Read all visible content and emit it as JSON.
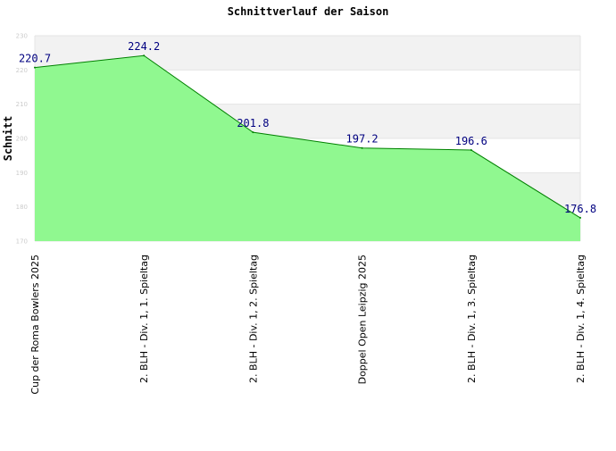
{
  "chart_data": {
    "type": "area",
    "title": "Schnittverlauf der Saison",
    "ylabel": "Schnitt",
    "xlabel": "",
    "categories": [
      "Cup der Roma Bowlers 2025",
      "2. BLH - Div. 1, 1. Spieltag",
      "2. BLH - Div. 1, 2. Spieltag",
      "Doppel Open Leipzig 2025",
      "2. BLH - Div. 1, 3. Spieltag",
      "2. BLH - Div. 1, 4. Spieltag"
    ],
    "values": [
      220.7,
      224.2,
      201.8,
      197.2,
      196.6,
      176.8
    ],
    "value_labels": [
      "220.7",
      "224.2",
      "201.8",
      "197.2",
      "196.6",
      "176.8"
    ],
    "ylim": [
      170,
      230
    ],
    "yticks": [
      170,
      180,
      190,
      200,
      210,
      220,
      230
    ],
    "grid": true,
    "legend": "none",
    "colors": {
      "fill": "#90f890",
      "line": "#008000",
      "band": "#f2f2f2",
      "grid": "#e4e4e4",
      "label": "#000080"
    }
  }
}
